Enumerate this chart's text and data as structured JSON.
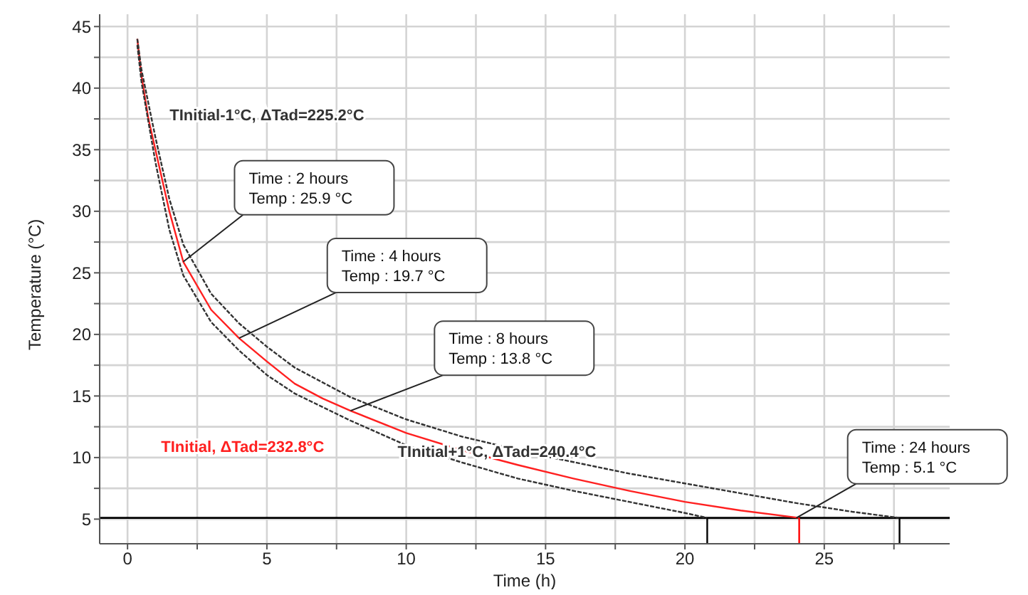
{
  "chart_data": {
    "type": "line",
    "xlabel": "Time (h)",
    "ylabel": "Temperature (°C)",
    "xlim": [
      -1,
      29.5
    ],
    "ylim": [
      3,
      46
    ],
    "xticks": [
      0,
      {
        "value": 2.5,
        "label": null
      },
      5,
      {
        "value": 7.5,
        "label": null
      },
      10,
      {
        "value": 12.5,
        "label": null
      },
      15,
      {
        "value": 17.5,
        "label": null
      },
      20,
      {
        "value": 22.5,
        "label": null
      },
      25,
      {
        "value": 27.5,
        "label": null
      }
    ],
    "yticks": [
      5,
      {
        "value": 7.5,
        "label": null
      },
      10,
      {
        "value": 12.5,
        "label": null
      },
      15,
      {
        "value": 17.5,
        "label": null
      },
      20,
      {
        "value": 22.5,
        "label": null
      },
      25,
      {
        "value": 27.5,
        "label": null
      },
      30,
      {
        "value": 32.5,
        "label": null
      },
      35,
      {
        "value": 37.5,
        "label": null
      },
      40,
      {
        "value": 42.5,
        "label": null
      },
      45
    ],
    "grid": true,
    "legend": false,
    "marker": "none",
    "series": [
      {
        "name": "TInitial, ΔTad=232.8°C",
        "color": "#ff2020",
        "line_style": "solid",
        "x": [
          0.35,
          0.5,
          0.75,
          1,
          1.5,
          2,
          3,
          4,
          5,
          6,
          7,
          8,
          10,
          12,
          14,
          16,
          18,
          20,
          22,
          24.1
        ],
        "values": [
          44,
          41,
          37.5,
          35,
          30,
          25.9,
          22,
          19.7,
          17.8,
          16.0,
          14.8,
          13.8,
          12.0,
          10.6,
          9.4,
          8.3,
          7.3,
          6.4,
          5.7,
          5.1
        ]
      },
      {
        "name": "TInitial-1°C, ΔTad=225.2°C",
        "color": "#333333",
        "line_style": "dashed",
        "x": [
          0.35,
          0.5,
          1,
          1.5,
          2,
          3,
          4,
          5,
          6,
          8,
          10,
          12,
          15,
          18,
          20,
          22,
          24,
          26,
          27.7
        ],
        "values": [
          44,
          41.5,
          36,
          31,
          27.3,
          23.3,
          20.9,
          19.0,
          17.3,
          14.9,
          13.1,
          11.7,
          10.1,
          8.7,
          7.9,
          7.1,
          6.3,
          5.6,
          5.1
        ]
      },
      {
        "name": "TInitial+1°C, ΔTad=240.4°C",
        "color": "#333333",
        "line_style": "dashed",
        "x": [
          0.35,
          0.5,
          1,
          1.5,
          2,
          3,
          4,
          5,
          6,
          8,
          10,
          12,
          14,
          16,
          18,
          20,
          20.8
        ],
        "values": [
          43.5,
          40.5,
          34,
          28.5,
          24.8,
          21,
          18.7,
          16.7,
          15.2,
          13.0,
          11.0,
          9.6,
          8.3,
          7.3,
          6.4,
          5.5,
          5.1
        ]
      },
      {
        "color": "#000000",
        "line_style": "solid",
        "x": [
          20.8,
          20.8
        ],
        "values": [
          3,
          5.1
        ]
      },
      {
        "color": "#ff0000",
        "line_style": "solid",
        "x": [
          24.1,
          24.1
        ],
        "values": [
          3,
          5.1
        ]
      },
      {
        "color": "#000000",
        "line_style": "solid",
        "x": [
          27.7,
          27.7
        ],
        "values": [
          3,
          5.1
        ]
      }
    ],
    "ref_lines": [
      {
        "axis": "y",
        "value": 5.1,
        "color": "#000000",
        "line_style": "solid"
      }
    ],
    "annotations": [
      {
        "text": "Time : 2 hours\nTemp : 25.9 °C",
        "x": 2,
        "y": 25.9
      },
      {
        "text": "Time : 4 hours\nTemp : 19.7 °C",
        "x": 4,
        "y": 19.7
      },
      {
        "text": "Time : 8 hours\nTemp : 13.8 °C",
        "x": 8,
        "y": 13.8
      },
      {
        "text": "Time : 24 hours\nTemp : 5.1 °C",
        "x": 24,
        "y": 5.1
      }
    ]
  }
}
